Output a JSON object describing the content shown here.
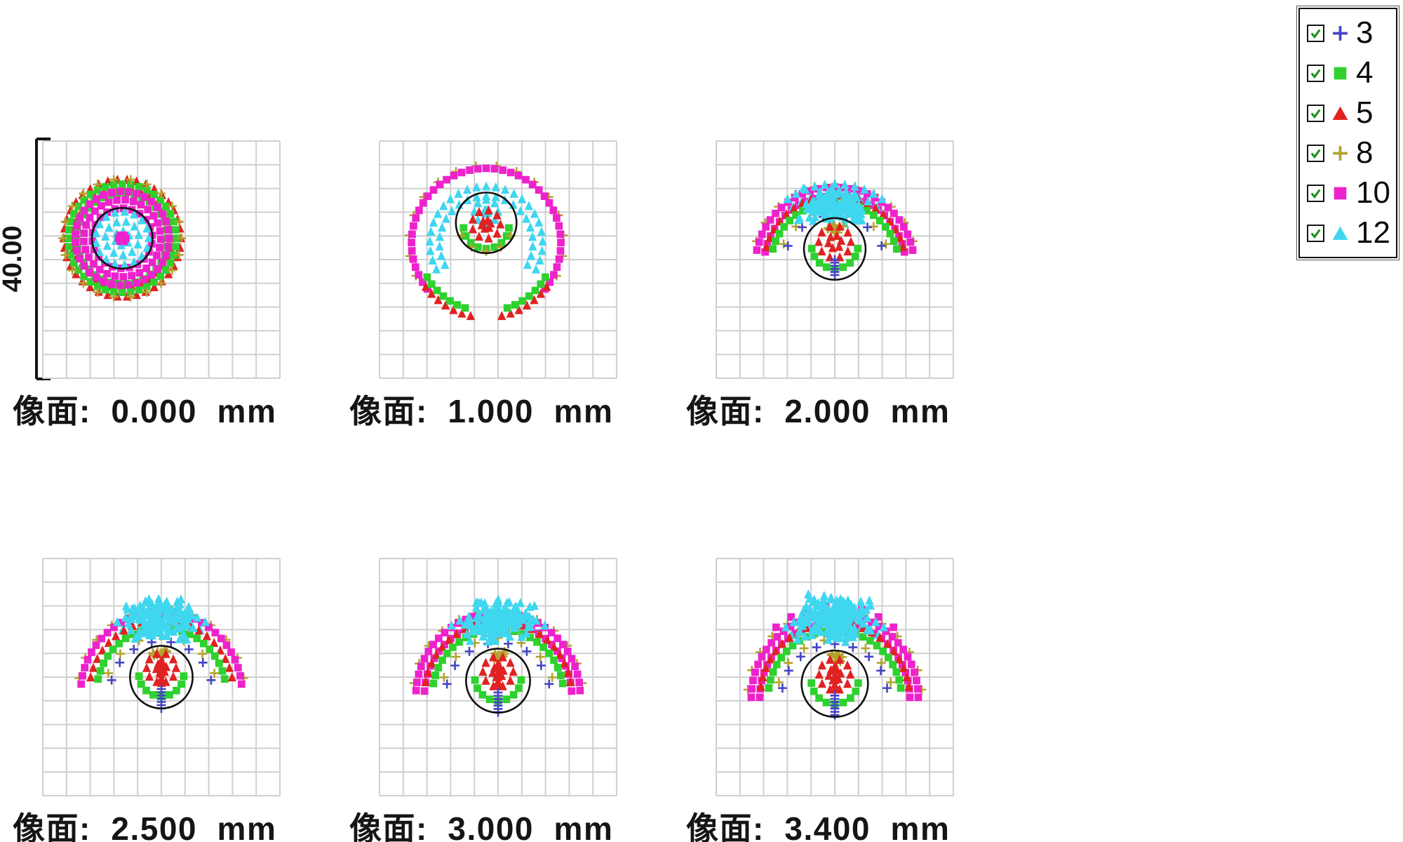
{
  "scale_bar": {
    "label": "40.00"
  },
  "legend": {
    "entries": [
      {
        "id": "3",
        "label": "3",
        "marker": "plus",
        "color": "#4444c4"
      },
      {
        "id": "4",
        "label": "4",
        "marker": "square",
        "color": "#2ed12e"
      },
      {
        "id": "5",
        "label": "5",
        "marker": "triangle",
        "color": "#e02222"
      },
      {
        "id": "8",
        "label": "8",
        "marker": "plus",
        "color": "#b4a32e"
      },
      {
        "id": "10",
        "label": "10",
        "marker": "square",
        "color": "#ee22cc"
      },
      {
        "id": "12",
        "label": "12",
        "marker": "triangle",
        "color": "#3fd6ef"
      }
    ]
  },
  "chart_data": {
    "type": "scatter",
    "description": "Spot diagrams at six image-plane (像面) defocus positions; black circle = reference circle; 10x10 gray grid; scale bar 40.00",
    "panel_grid": {
      "rows": 2,
      "cols": 3
    },
    "grid_cells": 10,
    "scale_bar_label": "40.00",
    "series_ids": [
      "3",
      "4",
      "5",
      "8",
      "10",
      "12"
    ],
    "panels": [
      {
        "label": "像面:  0.000  mm",
        "defocus_mm": 0.0,
        "circle": {
          "cx": 0.335,
          "cy": 0.41,
          "r": 0.128
        },
        "features": [
          {
            "s": "5",
            "t": "ring",
            "cx": 0.335,
            "cy": 0.41,
            "r0": 0.205,
            "r1": 0.247
          },
          {
            "s": "4",
            "t": "ring",
            "cx": 0.335,
            "cy": 0.41,
            "r0": 0.185,
            "r1": 0.228
          },
          {
            "s": "8",
            "t": "arc",
            "cx": 0.335,
            "cy": 0.41,
            "r": 0.25,
            "sp": 1.7
          },
          {
            "s": "10",
            "t": "ring",
            "cx": 0.335,
            "cy": 0.41,
            "r0": 0.125,
            "r1": 0.198
          },
          {
            "s": "12",
            "t": "disk",
            "cx": 0.335,
            "cy": 0.41,
            "r1": 0.112
          },
          {
            "s": "10",
            "t": "disk",
            "cx": 0.335,
            "cy": 0.41,
            "r1": 0.015
          }
        ]
      },
      {
        "label": "像面:  1.000  mm",
        "defocus_mm": 1.0,
        "circle": {
          "cx": 0.45,
          "cy": 0.345,
          "r": 0.128
        },
        "features": [
          {
            "s": "8",
            "t": "arc",
            "cx": 0.45,
            "cy": 0.43,
            "r": 0.327,
            "a0": -25,
            "a1": 205,
            "sp": 2.1
          },
          {
            "s": "10",
            "t": "ring",
            "cx": 0.45,
            "cy": 0.43,
            "r0": 0.283,
            "r1": 0.315,
            "a0": -38,
            "a1": 218
          },
          {
            "s": "5",
            "t": "ring",
            "cx": 0.45,
            "cy": 0.43,
            "r0": 0.283,
            "r1": 0.315,
            "a0": -78,
            "a1": -36
          },
          {
            "s": "5",
            "t": "ring",
            "cx": 0.45,
            "cy": 0.43,
            "r0": 0.283,
            "r1": 0.315,
            "a0": 216,
            "a1": 258
          },
          {
            "s": "4",
            "t": "ring",
            "cx": 0.45,
            "cy": 0.43,
            "r0": 0.262,
            "r1": 0.288,
            "a0": -72,
            "a1": -30
          },
          {
            "s": "4",
            "t": "ring",
            "cx": 0.45,
            "cy": 0.43,
            "r0": 0.262,
            "r1": 0.288,
            "a0": 210,
            "a1": 252
          },
          {
            "s": "12",
            "t": "ring",
            "cx": 0.45,
            "cy": 0.43,
            "r0": 0.195,
            "r1": 0.238,
            "a0": -28,
            "a1": 208
          },
          {
            "s": "12",
            "t": "disk",
            "cx": 0.45,
            "cy": 0.298,
            "r1": 0.05
          },
          {
            "s": "5",
            "t": "disk",
            "cx": 0.45,
            "cy": 0.352,
            "r1": 0.06
          },
          {
            "s": "4",
            "t": "ring",
            "cx": 0.45,
            "cy": 0.358,
            "r0": 0.072,
            "r1": 0.096,
            "a0": 185,
            "a1": 355
          },
          {
            "s": "8",
            "t": "arc",
            "cx": 0.45,
            "cy": 0.35,
            "r": 0.115,
            "a0": 205,
            "a1": 335,
            "sp": 1.7
          }
        ]
      },
      {
        "label": "像面:  2.000  mm",
        "defocus_mm": 2.0,
        "circle": {
          "cx": 0.5,
          "cy": 0.455,
          "r": 0.13
        },
        "features": [
          {
            "s": "8",
            "t": "arc",
            "cx": 0.5,
            "cy": 0.53,
            "r": 0.347,
            "a0": 18,
            "a1": 162,
            "sp": 2.0
          },
          {
            "s": "10",
            "t": "ring",
            "cx": 0.5,
            "cy": 0.53,
            "r0": 0.3,
            "r1": 0.336,
            "a0": 12,
            "a1": 168
          },
          {
            "s": "12",
            "t": "ring",
            "cx": 0.5,
            "cy": 0.53,
            "r0": 0.298,
            "r1": 0.348,
            "a0": 55,
            "a1": 125
          },
          {
            "s": "5",
            "t": "ring",
            "cx": 0.5,
            "cy": 0.53,
            "r0": 0.27,
            "r1": 0.3,
            "a0": 16,
            "a1": 164
          },
          {
            "s": "4",
            "t": "ring",
            "cx": 0.5,
            "cy": 0.53,
            "r0": 0.246,
            "r1": 0.272,
            "a0": 16,
            "a1": 164
          },
          {
            "s": "8",
            "t": "arc",
            "cx": 0.5,
            "cy": 0.53,
            "r": 0.236,
            "a0": 24,
            "a1": 156,
            "sp": 2.2
          },
          {
            "s": "3",
            "t": "arc",
            "cx": 0.5,
            "cy": 0.53,
            "r": 0.216,
            "a0": 24,
            "a1": 156,
            "sp": 2.3
          },
          {
            "s": "12",
            "t": "cluster",
            "cx": 0.5,
            "cy": 0.268,
            "rx": 0.16,
            "ry": 0.085,
            "n": 130,
            "seed": 7
          },
          {
            "s": "8",
            "t": "cluster",
            "cx": 0.5,
            "cy": 0.372,
            "rx": 0.05,
            "ry": 0.024,
            "n": 16,
            "seed": 11
          },
          {
            "s": "5",
            "t": "disk",
            "cx": 0.5,
            "cy": 0.426,
            "r1": 0.068
          },
          {
            "s": "4",
            "t": "ring",
            "cx": 0.5,
            "cy": 0.44,
            "r0": 0.074,
            "r1": 0.098,
            "a0": 188,
            "a1": 352
          },
          {
            "s": "3",
            "t": "column",
            "cx": 0.5,
            "y0": 0.5,
            "y1": 0.565,
            "n": 6
          }
        ]
      },
      {
        "label": "像面:  2.500  mm",
        "defocus_mm": 2.5,
        "circle": {
          "cx": 0.5,
          "cy": 0.5,
          "r": 0.132
        },
        "features": [
          {
            "s": "8",
            "t": "arc",
            "cx": 0.5,
            "cy": 0.565,
            "r": 0.352,
            "a0": 10,
            "a1": 170,
            "sp": 2.0
          },
          {
            "s": "10",
            "t": "ring",
            "cx": 0.5,
            "cy": 0.565,
            "r0": 0.305,
            "r1": 0.34,
            "a0": 6,
            "a1": 174
          },
          {
            "s": "12",
            "t": "ring",
            "cx": 0.5,
            "cy": 0.565,
            "r0": 0.3,
            "r1": 0.35,
            "a0": 58,
            "a1": 122
          },
          {
            "s": "5",
            "t": "ring",
            "cx": 0.5,
            "cy": 0.565,
            "r0": 0.272,
            "r1": 0.305,
            "a0": 12,
            "a1": 168
          },
          {
            "s": "4",
            "t": "ring",
            "cx": 0.5,
            "cy": 0.565,
            "r0": 0.247,
            "r1": 0.273,
            "a0": 12,
            "a1": 168
          },
          {
            "s": "8",
            "t": "arc",
            "cx": 0.5,
            "cy": 0.565,
            "r": 0.238,
            "a0": 20,
            "a1": 160,
            "sp": 2.2
          },
          {
            "s": "3",
            "t": "arc",
            "cx": 0.5,
            "cy": 0.565,
            "r": 0.216,
            "a0": 14,
            "a1": 166,
            "sp": 2.0
          },
          {
            "s": "12",
            "t": "cluster",
            "cx": 0.5,
            "cy": 0.255,
            "rx": 0.155,
            "ry": 0.095,
            "n": 150,
            "seed": 13
          },
          {
            "s": "8",
            "t": "cluster",
            "cx": 0.5,
            "cy": 0.398,
            "rx": 0.05,
            "ry": 0.024,
            "n": 14,
            "seed": 5
          },
          {
            "s": "5",
            "t": "disk",
            "cx": 0.5,
            "cy": 0.462,
            "r1": 0.062
          },
          {
            "s": "5",
            "t": "column",
            "cx": 0.5,
            "y0": 0.43,
            "y1": 0.525,
            "n": 6
          },
          {
            "s": "4",
            "t": "ring",
            "cx": 0.5,
            "cy": 0.486,
            "r0": 0.07,
            "r1": 0.095,
            "a0": 186,
            "a1": 354
          },
          {
            "s": "3",
            "t": "column",
            "cx": 0.5,
            "y0": 0.55,
            "y1": 0.632,
            "n": 7
          }
        ]
      },
      {
        "label": "像面:  3.000  mm",
        "defocus_mm": 3.0,
        "circle": {
          "cx": 0.5,
          "cy": 0.515,
          "r": 0.135
        },
        "features": [
          {
            "s": "8",
            "t": "arc",
            "cx": 0.5,
            "cy": 0.575,
            "r": 0.358,
            "a0": 8,
            "a1": 172,
            "sp": 2.0
          },
          {
            "s": "10",
            "t": "ring",
            "cx": 0.5,
            "cy": 0.575,
            "r0": 0.31,
            "r1": 0.346,
            "a0": 3,
            "a1": 177
          },
          {
            "s": "12",
            "t": "ring",
            "cx": 0.5,
            "cy": 0.575,
            "r0": 0.3,
            "r1": 0.352,
            "a0": 56,
            "a1": 124
          },
          {
            "s": "5",
            "t": "ring",
            "cx": 0.5,
            "cy": 0.575,
            "r0": 0.276,
            "r1": 0.31,
            "a0": 10,
            "a1": 170
          },
          {
            "s": "4",
            "t": "ring",
            "cx": 0.5,
            "cy": 0.575,
            "r0": 0.25,
            "r1": 0.277,
            "a0": 10,
            "a1": 170
          },
          {
            "s": "8",
            "t": "arc",
            "cx": 0.5,
            "cy": 0.575,
            "r": 0.24,
            "a0": 18,
            "a1": 162,
            "sp": 2.2
          },
          {
            "s": "3",
            "t": "arc",
            "cx": 0.5,
            "cy": 0.575,
            "r": 0.22,
            "a0": 12,
            "a1": 168,
            "sp": 1.9
          },
          {
            "s": "12",
            "t": "cluster",
            "cx": 0.5,
            "cy": 0.26,
            "rx": 0.16,
            "ry": 0.1,
            "n": 160,
            "seed": 17
          },
          {
            "s": "8",
            "t": "cluster",
            "cx": 0.5,
            "cy": 0.41,
            "rx": 0.05,
            "ry": 0.025,
            "n": 15,
            "seed": 9
          },
          {
            "s": "5",
            "t": "disk",
            "cx": 0.5,
            "cy": 0.478,
            "r1": 0.064
          },
          {
            "s": "5",
            "t": "column",
            "cx": 0.5,
            "y0": 0.445,
            "y1": 0.538,
            "n": 6
          },
          {
            "s": "4",
            "t": "ring",
            "cx": 0.5,
            "cy": 0.502,
            "r0": 0.072,
            "r1": 0.098,
            "a0": 186,
            "a1": 354
          },
          {
            "s": "3",
            "t": "column",
            "cx": 0.5,
            "y0": 0.565,
            "y1": 0.648,
            "n": 7
          }
        ]
      },
      {
        "label": "像面:  3.400  mm",
        "defocus_mm": 3.4,
        "circle": {
          "cx": 0.5,
          "cy": 0.528,
          "r": 0.14
        },
        "features": [
          {
            "s": "8",
            "t": "arc",
            "cx": 0.5,
            "cy": 0.585,
            "r": 0.368,
            "a0": 5,
            "a1": 175,
            "sp": 1.9
          },
          {
            "s": "10",
            "t": "ring",
            "cx": 0.5,
            "cy": 0.585,
            "r0": 0.315,
            "r1": 0.352,
            "a0": 0,
            "a1": 180
          },
          {
            "s": "10",
            "t": "arc",
            "cx": 0.5,
            "cy": 0.585,
            "r": 0.385,
            "a0": 50,
            "a1": 130,
            "sp": 2.2
          },
          {
            "s": "12",
            "t": "ring",
            "cx": 0.5,
            "cy": 0.585,
            "r0": 0.3,
            "r1": 0.36,
            "a0": 55,
            "a1": 125
          },
          {
            "s": "5",
            "t": "ring",
            "cx": 0.5,
            "cy": 0.585,
            "r0": 0.28,
            "r1": 0.315,
            "a0": 8,
            "a1": 172
          },
          {
            "s": "4",
            "t": "ring",
            "cx": 0.5,
            "cy": 0.585,
            "r0": 0.253,
            "r1": 0.281,
            "a0": 8,
            "a1": 172
          },
          {
            "s": "8",
            "t": "arc",
            "cx": 0.5,
            "cy": 0.585,
            "r": 0.244,
            "a0": 15,
            "a1": 165,
            "sp": 2.1
          },
          {
            "s": "3",
            "t": "arc",
            "cx": 0.5,
            "cy": 0.585,
            "r": 0.224,
            "a0": 10,
            "a1": 170,
            "sp": 1.8
          },
          {
            "s": "12",
            "t": "cluster",
            "cx": 0.5,
            "cy": 0.252,
            "rx": 0.17,
            "ry": 0.108,
            "n": 185,
            "seed": 23
          },
          {
            "s": "8",
            "t": "cluster",
            "cx": 0.5,
            "cy": 0.42,
            "rx": 0.052,
            "ry": 0.026,
            "n": 16,
            "seed": 3
          },
          {
            "s": "5",
            "t": "disk",
            "cx": 0.5,
            "cy": 0.49,
            "r1": 0.066
          },
          {
            "s": "5",
            "t": "column",
            "cx": 0.5,
            "y0": 0.455,
            "y1": 0.552,
            "n": 6
          },
          {
            "s": "4",
            "t": "ring",
            "cx": 0.5,
            "cy": 0.515,
            "r0": 0.073,
            "r1": 0.099,
            "a0": 186,
            "a1": 354
          },
          {
            "s": "3",
            "t": "column",
            "cx": 0.5,
            "y0": 0.578,
            "y1": 0.66,
            "n": 7
          }
        ]
      }
    ]
  }
}
